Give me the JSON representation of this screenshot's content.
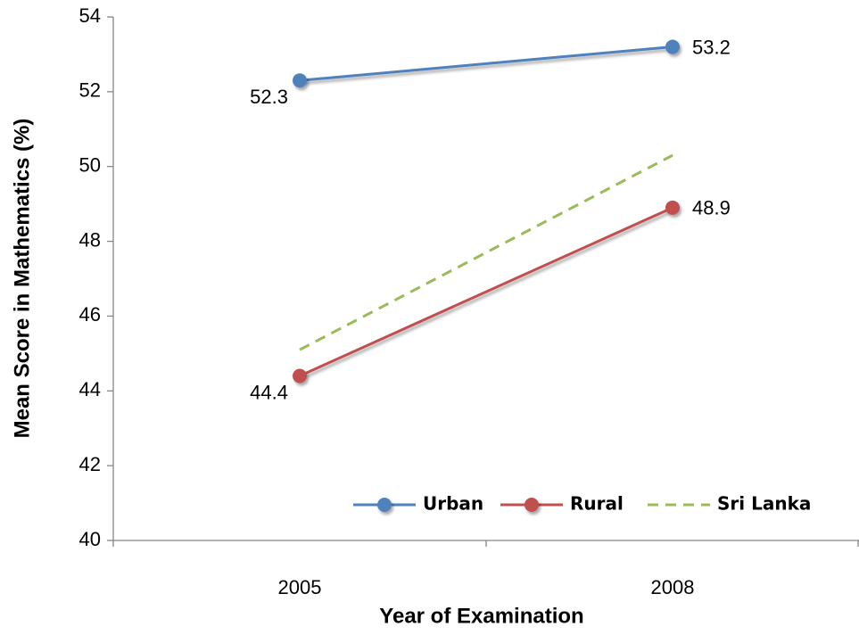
{
  "chart_data": {
    "type": "line",
    "x_label": "Year of Examination",
    "y_label": "Mean Score in Mathematics (%)",
    "categories": [
      "2005",
      "2008"
    ],
    "series": [
      {
        "name": "Urban",
        "color": "#4f81bd",
        "values": [
          52.3,
          53.2
        ],
        "marker": true,
        "dashed": false,
        "data_labels": true
      },
      {
        "name": "Rural",
        "color": "#c0504d",
        "values": [
          44.4,
          48.9
        ],
        "marker": true,
        "dashed": false,
        "data_labels": true
      },
      {
        "name": "Sri Lanka",
        "color": "#9bbb59",
        "values": [
          45.1,
          50.3
        ],
        "marker": false,
        "dashed": true,
        "data_labels": false
      }
    ],
    "ylim": [
      40,
      54
    ],
    "yticks": [
      40,
      42,
      44,
      46,
      48,
      50,
      52,
      54
    ],
    "legend": "bottom-right"
  }
}
